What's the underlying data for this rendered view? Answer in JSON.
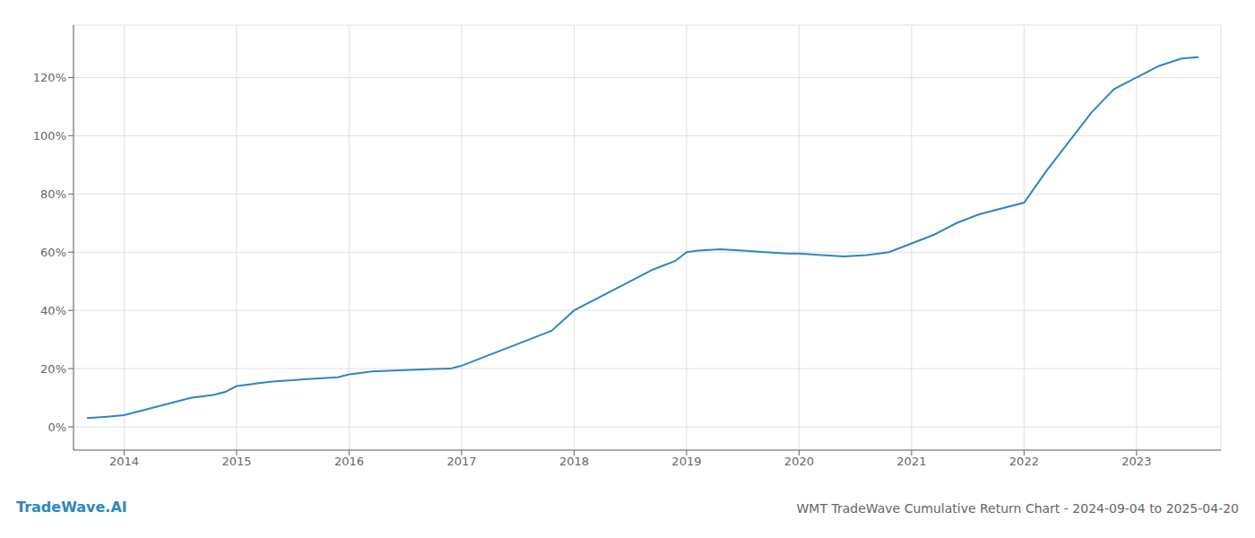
{
  "chart_data": {
    "type": "line",
    "title": "WMT TradeWave Cumulative Return Chart - 2024-09-04 to 2025-04-20",
    "annotations": [
      "TradeWave.AI"
    ],
    "x": [
      2013.67,
      2013.85,
      2014.0,
      2014.1,
      2014.2,
      2014.3,
      2014.4,
      2014.5,
      2014.6,
      2014.7,
      2014.8,
      2014.9,
      2015.0,
      2015.1,
      2015.2,
      2015.3,
      2015.4,
      2015.5,
      2015.6,
      2015.7,
      2015.8,
      2015.9,
      2016.0,
      2016.1,
      2016.2,
      2016.3,
      2016.5,
      2016.7,
      2016.9,
      2017.0,
      2017.2,
      2017.4,
      2017.6,
      2017.8,
      2018.0,
      2018.15,
      2018.3,
      2018.5,
      2018.7,
      2018.9,
      2019.0,
      2019.1,
      2019.2,
      2019.3,
      2019.5,
      2019.7,
      2019.9,
      2020.0,
      2020.2,
      2020.4,
      2020.6,
      2020.8,
      2021.0,
      2021.2,
      2021.4,
      2021.6,
      2021.8,
      2022.0,
      2022.2,
      2022.4,
      2022.6,
      2022.8,
      2023.0,
      2023.2,
      2023.4,
      2023.55
    ],
    "values": [
      3,
      3.5,
      4,
      5,
      6,
      7,
      8,
      9,
      10,
      10.5,
      11,
      12,
      14,
      14.5,
      15,
      15.5,
      15.8,
      16,
      16.3,
      16.6,
      16.8,
      17,
      18,
      18.5,
      19,
      19.2,
      19.5,
      19.8,
      20,
      21,
      24,
      27,
      30,
      33,
      40,
      43,
      46,
      50,
      54,
      57,
      60,
      60.5,
      60.8,
      61,
      60.5,
      60,
      59.5,
      59.5,
      59,
      58.5,
      59,
      60,
      63,
      66,
      70,
      73,
      75,
      77,
      88,
      98,
      108,
      116,
      120,
      124,
      126.5,
      127
    ],
    "color": "#2e86c1",
    "xlim": [
      2013.55,
      2023.75
    ],
    "xticks": [
      2014,
      2015,
      2016,
      2017,
      2018,
      2019,
      2020,
      2021,
      2022,
      2023
    ],
    "ylim": [
      -8,
      138
    ],
    "yticks": [
      {
        "value": 0,
        "label": "0%"
      },
      {
        "value": 20,
        "label": "20%"
      },
      {
        "value": 40,
        "label": "40%"
      },
      {
        "value": 60,
        "label": "60%"
      },
      {
        "value": 80,
        "label": "80%"
      },
      {
        "value": 100,
        "label": "100%"
      },
      {
        "value": 120,
        "label": "120%"
      }
    ],
    "grid": true
  }
}
